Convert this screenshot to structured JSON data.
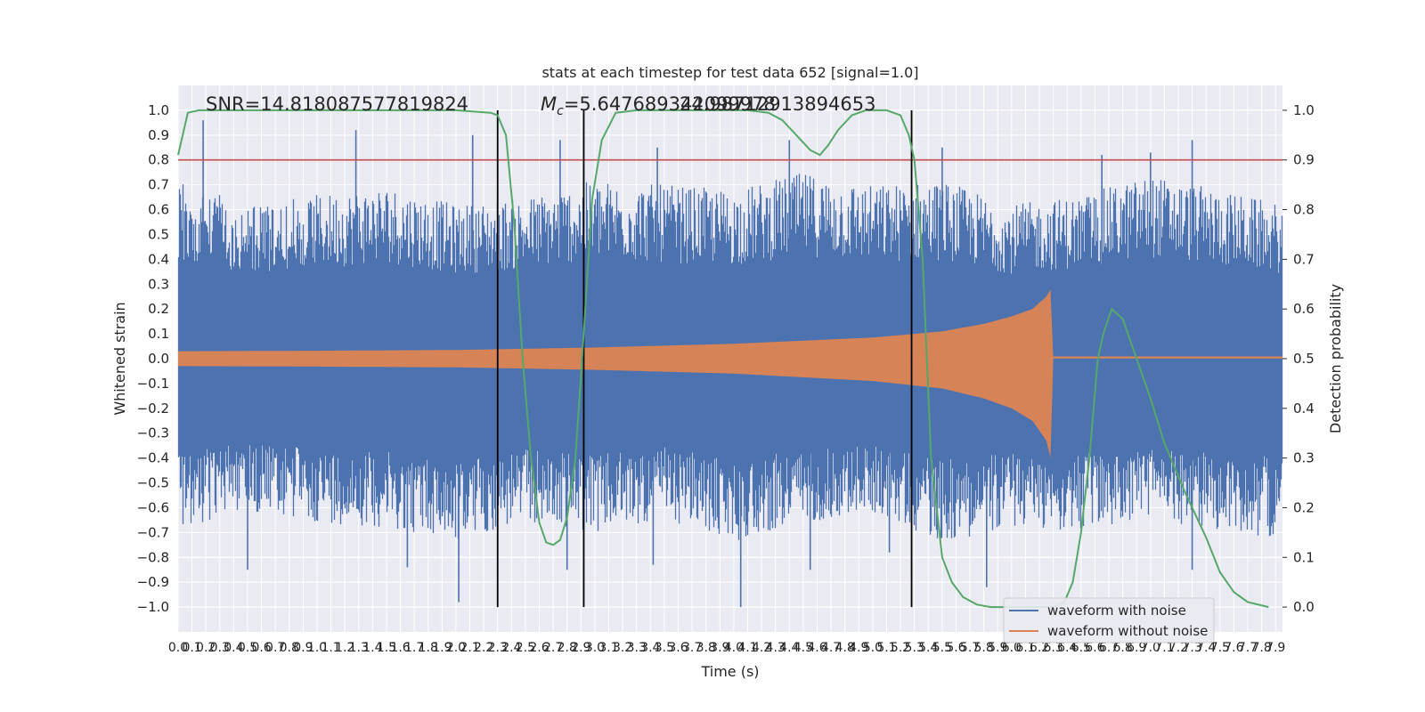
{
  "chart_data": {
    "type": "line",
    "title": "stats at each timestep for test data 652 [signal=1.0]",
    "xlabel": "Time (s)",
    "ylabel_left": "Whitened strain",
    "ylabel_right": "Detection probability",
    "xlim": [
      0.0,
      7.95
    ],
    "ylim_left": [
      -1.1,
      1.1
    ],
    "ylim_right": [
      -0.05,
      1.05
    ],
    "x_ticks": [
      "0.0",
      "0.1",
      "0.2",
      "0.3",
      "0.4",
      "0.5",
      "0.6",
      "0.7",
      "0.8",
      "0.9",
      "1.0",
      "1.1",
      "1.2",
      "1.3",
      "1.4",
      "1.5",
      "1.6",
      "1.7",
      "1.8",
      "1.9",
      "2.0",
      "2.1",
      "2.2",
      "2.3",
      "2.4",
      "2.5",
      "2.6",
      "2.7",
      "2.8",
      "2.9",
      "3.0",
      "3.1",
      "3.2",
      "3.3",
      "3.4",
      "3.5",
      "3.6",
      "3.7",
      "3.8",
      "3.9",
      "4.0",
      "4.1",
      "4.2",
      "4.3",
      "4.4",
      "4.5",
      "4.6",
      "4.7",
      "4.8",
      "4.9",
      "5.0",
      "5.1",
      "5.2",
      "5.3",
      "5.4",
      "5.5",
      "5.6",
      "5.7",
      "5.8",
      "5.9",
      "6.0",
      "6.1",
      "6.2",
      "6.3",
      "6.4",
      "6.5",
      "6.6",
      "6.7",
      "6.8",
      "6.9",
      "7.0",
      "7.1",
      "7.2",
      "7.3",
      "7.4",
      "7.5",
      "7.6",
      "7.7",
      "7.8",
      "7.9"
    ],
    "y_ticks_left": [
      "1.0",
      "0.9",
      "0.8",
      "0.7",
      "0.6",
      "0.5",
      "0.4",
      "0.3",
      "0.2",
      "0.1",
      "0.0",
      "−0.1",
      "−0.2",
      "−0.3",
      "−0.4",
      "−0.5",
      "−0.6",
      "−0.7",
      "−0.8",
      "−0.9",
      "−1.0"
    ],
    "y_ticks_right": [
      "1.0",
      "0.9",
      "0.8",
      "0.7",
      "0.6",
      "0.5",
      "0.4",
      "0.3",
      "0.2",
      "0.1",
      "0.0"
    ],
    "annotations": {
      "snr": "SNR=14.818087577819824",
      "mc_symbol": "M",
      "mc_subscript": "c",
      "mc_value": "=5.647689342099978",
      "mc_overlap": "24.98712913894653"
    },
    "threshold": {
      "y_right": 0.9,
      "color": "#c44e52"
    },
    "vertical_markers_x": [
      2.3,
      2.92,
      5.28
    ],
    "series": [
      {
        "name": "waveform with noise",
        "color": "#4c72b0",
        "envelope": {
          "x": [
            0.0,
            0.5,
            1.0,
            1.5,
            2.0,
            2.5,
            3.0,
            3.5,
            4.0,
            4.5,
            5.0,
            5.5,
            6.0,
            6.5,
            7.0,
            7.5,
            7.95
          ],
          "top": [
            0.72,
            0.62,
            0.66,
            0.7,
            0.62,
            0.65,
            0.72,
            0.7,
            0.68,
            0.75,
            0.7,
            0.72,
            0.62,
            0.66,
            0.74,
            0.68,
            0.62
          ],
          "bottom": [
            -0.68,
            -0.62,
            -0.66,
            -0.68,
            -0.74,
            -0.66,
            -0.7,
            -0.65,
            -0.74,
            -0.66,
            -0.62,
            -0.74,
            -0.68,
            -0.7,
            -0.64,
            -0.7,
            -0.72
          ]
        },
        "peaks": [
          [
            0.18,
            0.96
          ],
          [
            1.28,
            0.92
          ],
          [
            2.12,
            0.9
          ],
          [
            2.75,
            0.88
          ],
          [
            3.45,
            0.85
          ],
          [
            4.4,
            0.88
          ],
          [
            5.5,
            0.85
          ],
          [
            6.65,
            0.82
          ],
          [
            7.0,
            0.83
          ],
          [
            7.3,
            0.88
          ]
        ],
        "troughs": [
          [
            0.5,
            -0.85
          ],
          [
            1.65,
            -0.84
          ],
          [
            2.02,
            -0.98
          ],
          [
            2.8,
            -0.85
          ],
          [
            3.42,
            -0.83
          ],
          [
            4.05,
            -1.0
          ],
          [
            4.55,
            -0.85
          ],
          [
            5.12,
            -0.78
          ],
          [
            5.82,
            -0.92
          ],
          [
            7.3,
            -0.85
          ]
        ]
      },
      {
        "name": "waveform without noise",
        "color": "#dd8452",
        "envelope": {
          "x": [
            0.0,
            1.0,
            2.0,
            3.0,
            4.0,
            5.0,
            5.5,
            5.8,
            6.0,
            6.15,
            6.25,
            6.28,
            6.3,
            7.95
          ],
          "amp_top": [
            0.03,
            0.032,
            0.035,
            0.045,
            0.06,
            0.085,
            0.11,
            0.14,
            0.17,
            0.2,
            0.25,
            0.28,
            0.0,
            0.0
          ],
          "amp_bottom": [
            -0.03,
            -0.032,
            -0.035,
            -0.045,
            -0.06,
            -0.09,
            -0.12,
            -0.16,
            -0.2,
            -0.25,
            -0.33,
            -0.4,
            0.0,
            0.0
          ]
        }
      },
      {
        "name": "detection probability",
        "axis": "right",
        "color": "#55a868",
        "x": [
          0.0,
          0.07,
          0.15,
          0.3,
          0.6,
          1.0,
          1.5,
          2.0,
          2.25,
          2.3,
          2.36,
          2.42,
          2.48,
          2.54,
          2.6,
          2.65,
          2.7,
          2.75,
          2.8,
          2.86,
          2.92,
          2.98,
          3.05,
          3.15,
          3.3,
          3.5,
          3.8,
          4.1,
          4.25,
          4.35,
          4.45,
          4.55,
          4.62,
          4.68,
          4.75,
          4.85,
          4.95,
          5.1,
          5.2,
          5.26,
          5.3,
          5.36,
          5.42,
          5.5,
          5.57,
          5.65,
          5.75,
          5.85,
          6.0,
          6.15,
          6.3,
          6.38,
          6.44,
          6.5,
          6.56,
          6.62,
          6.66,
          6.72,
          6.8,
          6.9,
          7.0,
          7.1,
          7.25,
          7.4,
          7.5,
          7.6,
          7.7,
          7.85
        ],
        "y": [
          0.91,
          0.995,
          1.0,
          1.0,
          1.0,
          1.0,
          1.0,
          1.0,
          0.995,
          0.99,
          0.95,
          0.77,
          0.5,
          0.3,
          0.17,
          0.13,
          0.125,
          0.135,
          0.18,
          0.3,
          0.55,
          0.82,
          0.94,
          0.995,
          1.0,
          1.0,
          1.0,
          1.0,
          0.995,
          0.98,
          0.95,
          0.92,
          0.91,
          0.93,
          0.96,
          0.99,
          1.0,
          1.0,
          0.99,
          0.95,
          0.9,
          0.7,
          0.3,
          0.1,
          0.05,
          0.02,
          0.005,
          0.0,
          0.0,
          0.0,
          0.0,
          0.01,
          0.05,
          0.15,
          0.3,
          0.5,
          0.55,
          0.6,
          0.58,
          0.5,
          0.42,
          0.33,
          0.23,
          0.14,
          0.07,
          0.03,
          0.01,
          0.0
        ]
      }
    ],
    "legend": {
      "placement": "lower-right",
      "entries": [
        "waveform with noise",
        "waveform without noise"
      ]
    },
    "grid": true
  }
}
